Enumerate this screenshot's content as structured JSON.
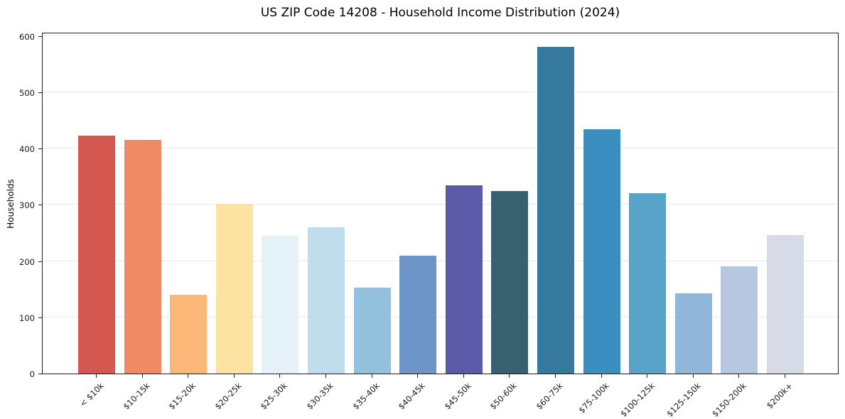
{
  "chart_data": {
    "type": "bar",
    "title": "US ZIP Code 14208 - Household Income Distribution (2024)",
    "xlabel": "",
    "ylabel": "Households",
    "categories": [
      "< $10k",
      "$10-15k",
      "$15-20k",
      "$20-25k",
      "$25-30k",
      "$30-35k",
      "$35-40k",
      "$40-45k",
      "$45-50k",
      "$50-60k",
      "$60-75k",
      "$75-100k",
      "$100-125k",
      "$125-150k",
      "$150-200k",
      "$200k+"
    ],
    "values": [
      423,
      415,
      140,
      302,
      245,
      260,
      153,
      210,
      335,
      324,
      580,
      434,
      320,
      143,
      191,
      246
    ],
    "bar_colors": [
      "#d45750",
      "#f08a64",
      "#fbb878",
      "#fde3a2",
      "#e4f1f6",
      "#c0ddec",
      "#93c0dd",
      "#6d95c7",
      "#5c5baa",
      "#38616f",
      "#35799e",
      "#3a8ec0",
      "#58a3c7",
      "#90b7da",
      "#b6c7df",
      "#d7dae7"
    ],
    "yticks": [
      0,
      100,
      200,
      300,
      400,
      500,
      600
    ],
    "ylim": [
      0,
      607
    ],
    "grid": "horizontal",
    "legend": "none",
    "tick_label_rotation": 45,
    "background_color": "#ffffff",
    "gridline_color": "#e8e8e8"
  }
}
